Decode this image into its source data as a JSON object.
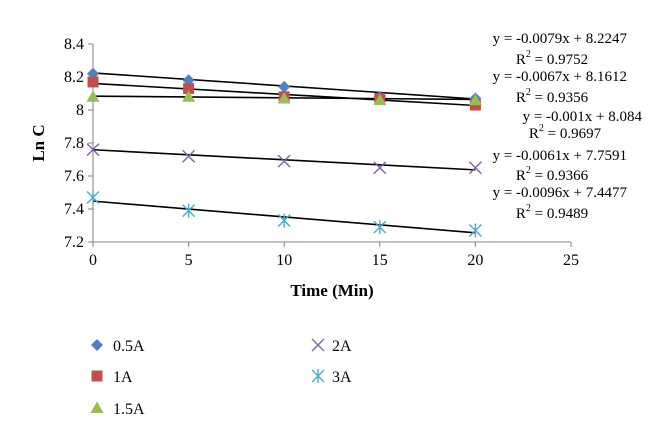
{
  "chart_data": {
    "type": "scatter",
    "title": "",
    "xlabel": "Time (Min)",
    "ylabel": "Ln C",
    "xlim": [
      0,
      25
    ],
    "ylim": [
      7.2,
      8.4
    ],
    "x_ticks": [
      "0",
      "5",
      "10",
      "15",
      "20",
      "25"
    ],
    "y_ticks": [
      "7.2",
      "7.4",
      "7.6",
      "7.8",
      "8",
      "8.2",
      "8.4"
    ],
    "grid": false,
    "legend_position": "bottom",
    "series": [
      {
        "name": "0.5A",
        "marker": "diamond",
        "color": "#4f81bd",
        "x": [
          0,
          5,
          10,
          15,
          20
        ],
        "y": [
          8.22,
          8.18,
          8.14,
          8.08,
          8.07
        ],
        "trend": {
          "slope": -0.0079,
          "intercept": 8.2247
        },
        "equation": "y = -0.0079x + 8.2247",
        "r2_label": "R",
        "r2_value": " = 0.9752"
      },
      {
        "name": "1A",
        "marker": "square",
        "color": "#c0504d",
        "x": [
          0,
          5,
          10,
          15,
          20
        ],
        "y": [
          8.17,
          8.13,
          8.08,
          8.07,
          8.03
        ],
        "trend": {
          "slope": -0.0067,
          "intercept": 8.1612
        },
        "equation": "y = -0.0067x + 8.1612",
        "r2_label": "R",
        "r2_value": " = 0.9356"
      },
      {
        "name": "1.5A",
        "marker": "triangle",
        "color": "#9bbb59",
        "x": [
          0,
          5,
          10,
          15,
          20
        ],
        "y": [
          8.08,
          8.08,
          8.07,
          8.06,
          8.06
        ],
        "trend": {
          "slope": -0.001,
          "intercept": 8.084
        },
        "equation": "y = -0.001x + 8.084",
        "r2_label": "R",
        "r2_value": " = 0.9697"
      },
      {
        "name": "2A",
        "marker": "x",
        "color": "#8064a2",
        "x": [
          0,
          5,
          10,
          15,
          20
        ],
        "y": [
          7.76,
          7.72,
          7.69,
          7.65,
          7.65
        ],
        "trend": {
          "slope": -0.0061,
          "intercept": 7.7591
        },
        "equation": "y = -0.0061x + 7.7591",
        "r2_label": "R",
        "r2_value": " = 0.9366"
      },
      {
        "name": "3A",
        "marker": "star",
        "color": "#4bacc6",
        "x": [
          0,
          5,
          10,
          15,
          20
        ],
        "y": [
          7.47,
          7.39,
          7.33,
          7.29,
          7.27
        ],
        "trend": {
          "slope": -0.0096,
          "intercept": 7.4477
        },
        "equation": "y = -0.0096x + 7.4477",
        "r2_label": "R",
        "r2_value": " = 0.9489"
      }
    ]
  }
}
